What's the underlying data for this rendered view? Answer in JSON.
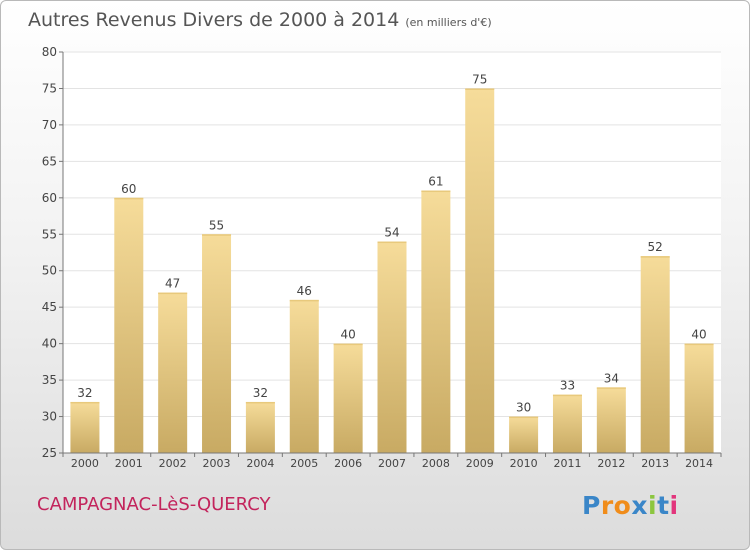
{
  "header": {
    "title": "Autres Revenus Divers de 2000 à 2014",
    "unit_note": "(en milliers d'€)"
  },
  "footer": {
    "place": "CAMPAGNAC-LèS-QUERCY",
    "logo": {
      "text": "Proxiti",
      "letters": [
        "P",
        "r",
        "o",
        "x",
        "i",
        "t",
        "i"
      ]
    }
  },
  "colors": {
    "bar_light": "#f6dc9a",
    "bar_dark": "#c8aa63",
    "axis": "#777777",
    "grid": "#e3e3e3",
    "place": "#c3245c",
    "logo_letters": [
      "#3a86c8",
      "#f08c1a",
      "#f08c1a",
      "#3a86c8",
      "#8cc63f",
      "#3a86c8",
      "#e2357c"
    ]
  },
  "chart_data": {
    "type": "bar",
    "title": "Autres Revenus Divers de 2000 à 2014",
    "subtitle": "(en milliers d'€)",
    "categories": [
      "2000",
      "2001",
      "2002",
      "2003",
      "2004",
      "2005",
      "2006",
      "2007",
      "2008",
      "2009",
      "2010",
      "2011",
      "2012",
      "2013",
      "2014"
    ],
    "values": [
      32,
      60,
      47,
      55,
      32,
      46,
      40,
      54,
      61,
      75,
      30,
      33,
      34,
      52,
      40
    ],
    "ylim": [
      25,
      80
    ],
    "yticks": [
      25,
      30,
      35,
      40,
      45,
      50,
      55,
      60,
      65,
      70,
      75,
      80
    ],
    "xlabel": "",
    "ylabel": "",
    "grid": true,
    "data_labels": true
  }
}
